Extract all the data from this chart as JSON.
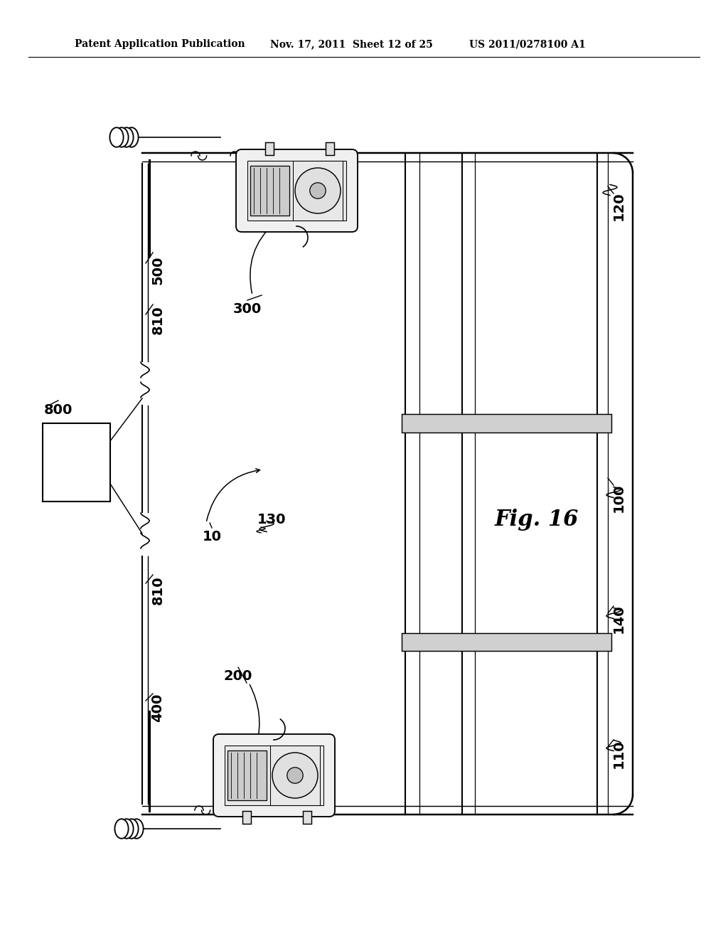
{
  "bg_color": "#ffffff",
  "header_left": "Patent Application Publication",
  "header_mid": "Nov. 17, 2011  Sheet 12 of 25",
  "header_right": "US 2011/0278100 A1",
  "fig_label": "Fig. 16"
}
